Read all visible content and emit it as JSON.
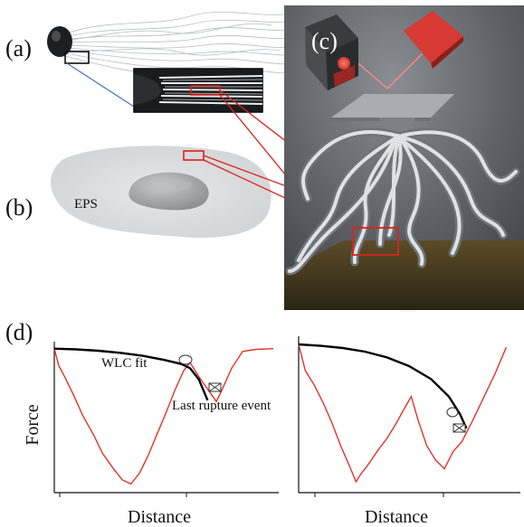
{
  "panels": {
    "a": "(a)",
    "b": "(b)",
    "c": "(c)",
    "d": "(d)"
  },
  "labels": {
    "eps": "EPS",
    "wlc_fit": "WLC fit",
    "last_rupture": "Last rupture event"
  },
  "colors": {
    "force_curve": "#e0352b",
    "fit_curve": "#000000",
    "highlight_box": "#d9231f",
    "axis": "#111111",
    "scene_bg": "#5b5e63",
    "stage": "#6e5a2c"
  },
  "chart_data": [
    {
      "type": "line",
      "title": "",
      "xlabel": "Distance",
      "ylabel": "Force",
      "series": [
        {
          "x": [
            0,
            0.02,
            0.05,
            0.09,
            0.13,
            0.18,
            0.22,
            0.27,
            0.31,
            0.35,
            0.39,
            0.43,
            0.47,
            0.51,
            0.55,
            0.59,
            0.62,
            0.66,
            0.7,
            0.74,
            0.77,
            0.81,
            0.86,
            0.92,
            1.0
          ],
          "y": [
            1.0,
            0.88,
            0.79,
            0.66,
            0.52,
            0.38,
            0.25,
            0.14,
            0.06,
            0.03,
            0.11,
            0.24,
            0.39,
            0.54,
            0.7,
            0.84,
            0.9,
            0.8,
            0.71,
            0.62,
            0.72,
            0.86,
            0.98,
            0.995,
            1.0
          ]
        },
        {
          "x": [
            0,
            0.1,
            0.2,
            0.3,
            0.4,
            0.5,
            0.58,
            0.62,
            0.66,
            0.7
          ],
          "y": [
            1.0,
            0.995,
            0.985,
            0.97,
            0.95,
            0.92,
            0.89,
            0.86,
            0.78,
            0.63
          ]
        }
      ],
      "xlim": [
        0,
        1
      ],
      "ylim": [
        0,
        1.05
      ]
    },
    {
      "type": "line",
      "title": "",
      "xlabel": "Distance",
      "ylabel": "",
      "series": [
        {
          "x": [
            0,
            0.03,
            0.07,
            0.11,
            0.15,
            0.19,
            0.23,
            0.26,
            0.28,
            0.32,
            0.36,
            0.4,
            0.44,
            0.48,
            0.51,
            0.54,
            0.58,
            0.62,
            0.66,
            0.7,
            0.74,
            0.79,
            0.84,
            0.89,
            0.94
          ],
          "y": [
            1.0,
            0.82,
            0.72,
            0.6,
            0.46,
            0.3,
            0.16,
            0.05,
            0.1,
            0.18,
            0.27,
            0.35,
            0.45,
            0.56,
            0.64,
            0.48,
            0.3,
            0.2,
            0.14,
            0.26,
            0.33,
            0.48,
            0.64,
            0.8,
            0.98
          ]
        },
        {
          "x": [
            0,
            0.1,
            0.2,
            0.3,
            0.4,
            0.5,
            0.6,
            0.68,
            0.73,
            0.76
          ],
          "y": [
            1.0,
            0.99,
            0.975,
            0.95,
            0.91,
            0.85,
            0.76,
            0.64,
            0.52,
            0.42
          ]
        }
      ],
      "xlim": [
        0,
        1
      ],
      "ylim": [
        0,
        1.05
      ]
    }
  ]
}
